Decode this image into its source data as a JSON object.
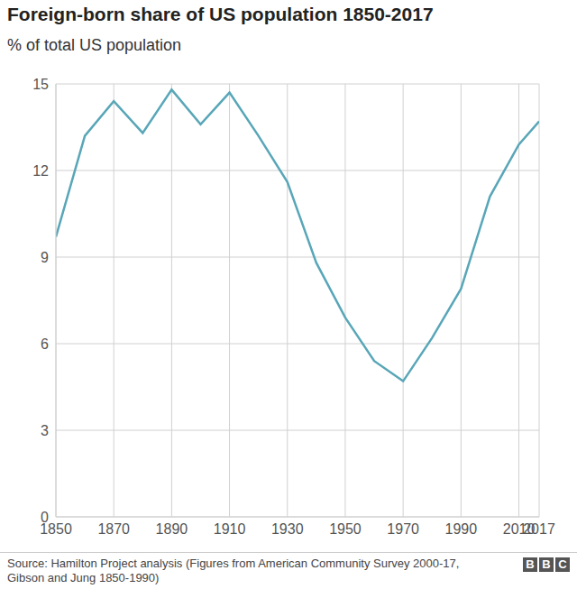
{
  "chart_data": {
    "type": "line",
    "title": "Foreign-born share of US population 1850-2017",
    "subtitle": "% of total US population",
    "source": "Source: Hamilton Project analysis (Figures from American Community Survey 2000-17, Gibson and Jung 1850-1990)",
    "logo": "BBC",
    "x": [
      1850,
      1860,
      1870,
      1880,
      1890,
      1900,
      1910,
      1920,
      1930,
      1940,
      1950,
      1960,
      1970,
      1980,
      1990,
      2000,
      2010,
      2017
    ],
    "values": [
      9.7,
      13.2,
      14.4,
      13.3,
      14.8,
      13.6,
      14.7,
      13.2,
      11.6,
      8.8,
      6.9,
      5.4,
      4.7,
      6.2,
      7.9,
      11.1,
      12.9,
      13.7
    ],
    "color": "#58a6b8",
    "xlim": [
      1850,
      2017
    ],
    "xticks": [
      1850,
      1870,
      1890,
      1910,
      1930,
      1950,
      1970,
      1990,
      2010,
      2017
    ],
    "ylim": [
      0,
      15
    ],
    "yticks": [
      0,
      3,
      6,
      9,
      12,
      15
    ],
    "grid": true
  }
}
